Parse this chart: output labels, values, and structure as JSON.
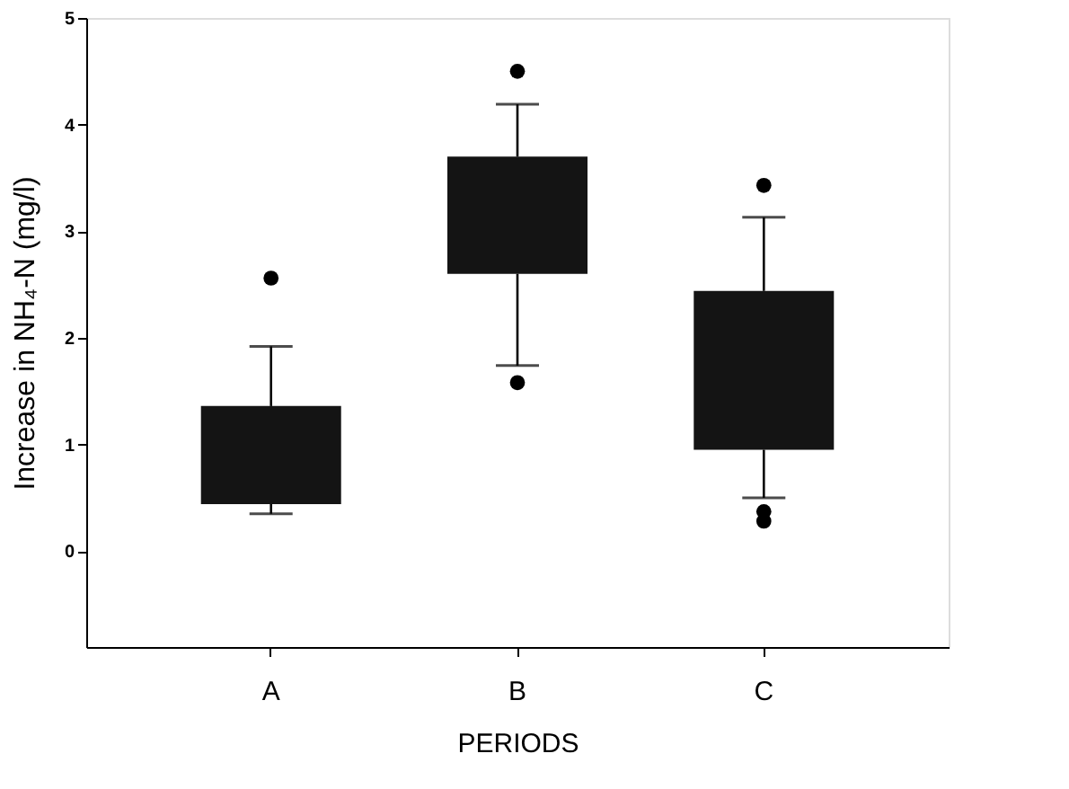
{
  "chart_data": {
    "type": "box",
    "xlabel": "PERIODS",
    "ylabel": "Increase in NH₄-N (mg/l)",
    "categories": [
      "A",
      "B",
      "C"
    ],
    "color": "#141414",
    "boxes": [
      {
        "low": 0.35,
        "q1": 0.44,
        "q3": 1.36,
        "high": 1.92,
        "outliers": [
          2.56
        ]
      },
      {
        "low": 1.74,
        "q1": 2.6,
        "q3": 3.7,
        "high": 4.19,
        "outliers": [
          4.5,
          1.58
        ]
      },
      {
        "low": 0.5,
        "q1": 0.95,
        "q3": 2.44,
        "high": 3.13,
        "outliers": [
          3.43,
          0.37,
          0.28
        ]
      }
    ],
    "ylim": [
      -0.9,
      5
    ],
    "yticks": [
      0,
      1,
      2,
      3,
      4,
      5
    ],
    "grid": false
  }
}
